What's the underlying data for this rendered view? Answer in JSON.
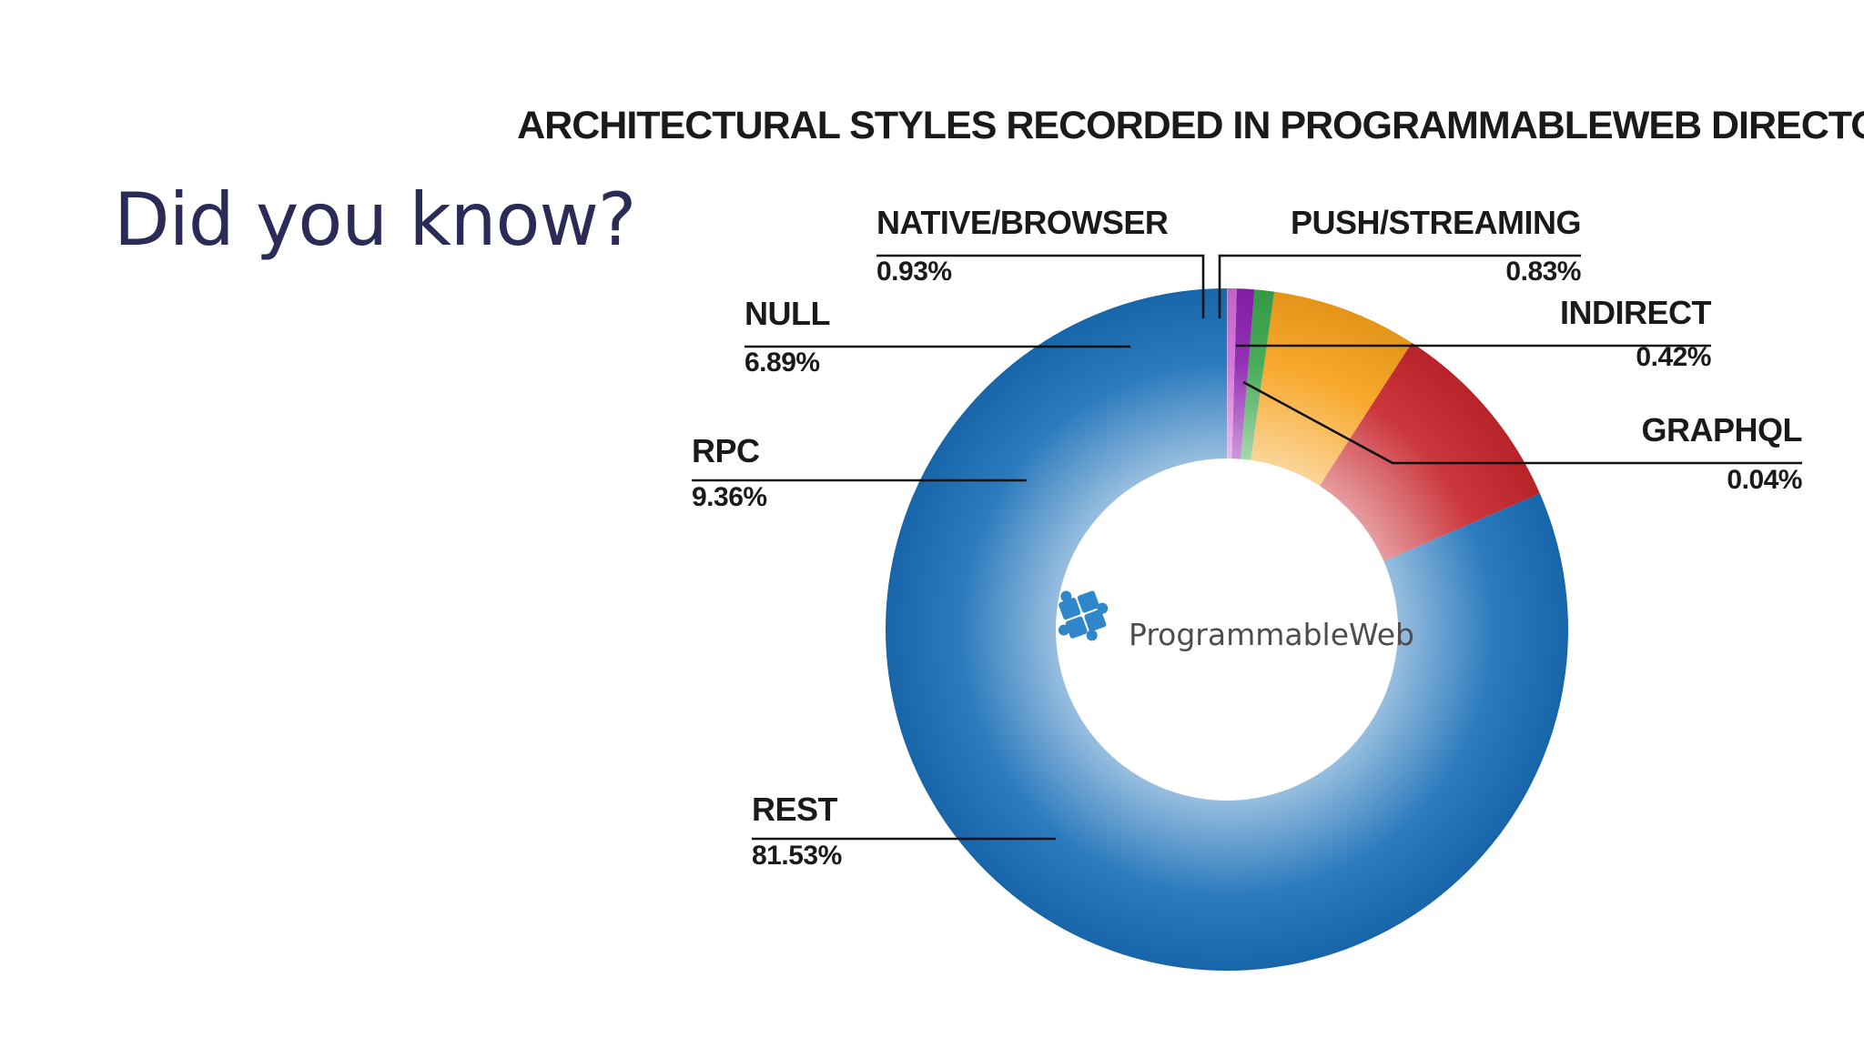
{
  "slide": {
    "heading": "Did you know?"
  },
  "logo": {
    "text": "ProgrammableWeb",
    "icon": "puzzle-piece-icon",
    "icon_color": "#2f86c8"
  },
  "chart_data": {
    "type": "pie",
    "variant": "donut",
    "title": "ARCHITECTURAL STYLES RECORDED IN PROGRAMMABLEWEB DIRECTORY",
    "value_unit": "%",
    "start": "top",
    "direction": "counterclockwise",
    "legend": "none",
    "slices": [
      {
        "label": "REST",
        "value": 81.53,
        "value_label": "81.53%",
        "color": "#1a6fb8"
      },
      {
        "label": "RPC",
        "value": 9.36,
        "value_label": "9.36%",
        "color": "#c7262c"
      },
      {
        "label": "NULL",
        "value": 6.89,
        "value_label": "6.89%",
        "color": "#f7a21c"
      },
      {
        "label": "NATIVE/BROWSER",
        "value": 0.93,
        "value_label": "0.93%",
        "color": "#3aa54a"
      },
      {
        "label": "PUSH/STREAMING",
        "value": 0.83,
        "value_label": "0.83%",
        "color": "#8c1fb0"
      },
      {
        "label": "INDIRECT",
        "value": 0.42,
        "value_label": "0.42%",
        "color": "#d36bd6"
      },
      {
        "label": "GRAPHQL",
        "value": 0.04,
        "value_label": "0.04%",
        "color": "#b8a4e6"
      }
    ]
  }
}
